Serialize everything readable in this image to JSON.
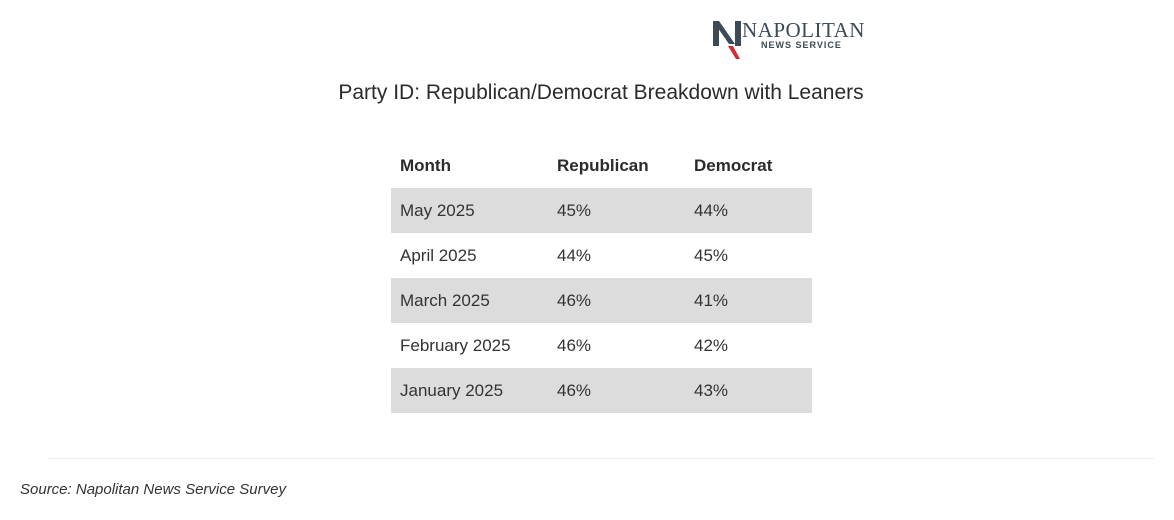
{
  "logo": {
    "main_text": "NAPOLITAN",
    "sub_text": "NEWS SERVICE",
    "colors": {
      "dark": "#3c4a55",
      "red": "#d62a36"
    }
  },
  "chart_data": {
    "type": "table",
    "title": "Party ID: Republican/Democrat Breakdown with Leaners",
    "columns": [
      "Month",
      "Republican",
      "Democrat"
    ],
    "rows": [
      [
        "May 2025",
        "45%",
        "44%"
      ],
      [
        "April 2025",
        "44%",
        "45%"
      ],
      [
        "March 2025",
        "46%",
        "41%"
      ],
      [
        "February 2025",
        "46%",
        "42%"
      ],
      [
        "January 2025",
        "46%",
        "43%"
      ]
    ]
  },
  "source": "Source: Napolitan News Service Survey"
}
